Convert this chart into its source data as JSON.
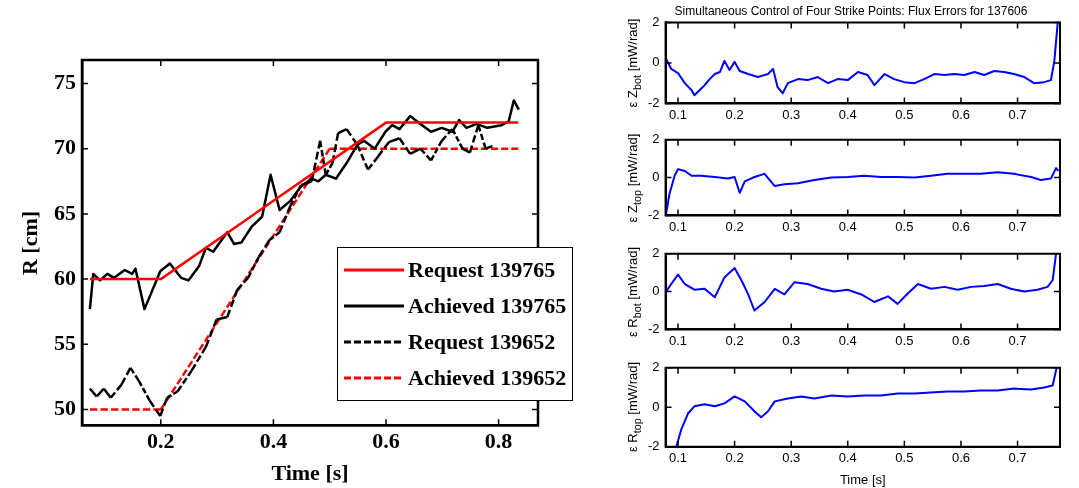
{
  "chart_data": [
    {
      "type": "line",
      "xlabel": "Time [s]",
      "ylabel": "R [cm]",
      "xlim": [
        0.06,
        0.87
      ],
      "ylim": [
        48.8,
        76.8
      ],
      "xticks": [
        0.2,
        0.4,
        0.6,
        0.8
      ],
      "yticks": [
        50,
        55,
        60,
        65,
        70,
        75
      ],
      "grid": false,
      "legend": "bottom right",
      "marker": "none",
      "series": [
        {
          "name": "Request 139765",
          "color": "#ff0000",
          "line_style": "solid",
          "x": [
            0.074,
            0.2,
            0.6,
            0.835
          ],
          "values": [
            60,
            60,
            72,
            72
          ]
        },
        {
          "name": "Achieved 139765",
          "color": "#000000",
          "line_style": "solid",
          "x": [
            0.074,
            0.08,
            0.092,
            0.105,
            0.117,
            0.136,
            0.149,
            0.155,
            0.171,
            0.199,
            0.216,
            0.236,
            0.249,
            0.268,
            0.28,
            0.293,
            0.318,
            0.33,
            0.343,
            0.361,
            0.38,
            0.395,
            0.411,
            0.43,
            0.449,
            0.468,
            0.48,
            0.493,
            0.511,
            0.53,
            0.549,
            0.561,
            0.58,
            0.599,
            0.611,
            0.624,
            0.643,
            0.661,
            0.68,
            0.699,
            0.718,
            0.73,
            0.743,
            0.761,
            0.78,
            0.805,
            0.818,
            0.827,
            0.836
          ],
          "values": [
            57.7,
            60.4,
            59.9,
            60.4,
            60.1,
            60.7,
            60.4,
            60.8,
            57.7,
            60.6,
            61.2,
            60.1,
            59.9,
            61,
            62.4,
            62.1,
            63.6,
            62.7,
            62.8,
            64,
            64.8,
            68,
            65.3,
            66,
            67.1,
            67.7,
            67.5,
            68,
            67.7,
            68.9,
            70.3,
            70.6,
            70,
            71.3,
            71.8,
            71.5,
            72.5,
            71.9,
            71.3,
            71.6,
            71.3,
            72.2,
            71.6,
            71.9,
            71.6,
            71.8,
            72.1,
            73.7,
            73
          ]
        },
        {
          "name": "Request 139652",
          "color": "#000000",
          "line_style": "dashed",
          "x": [
            0.074,
            0.086,
            0.099,
            0.111,
            0.13,
            0.146,
            0.161,
            0.18,
            0.199,
            0.211,
            0.23,
            0.255,
            0.28,
            0.299,
            0.318,
            0.336,
            0.355,
            0.374,
            0.393,
            0.411,
            0.43,
            0.449,
            0.468,
            0.483,
            0.493,
            0.505,
            0.515,
            0.53,
            0.549,
            0.568,
            0.586,
            0.605,
            0.624,
            0.643,
            0.661,
            0.68,
            0.699,
            0.718,
            0.736,
            0.749,
            0.764,
            0.777,
            0.789
          ],
          "values": [
            51.6,
            51,
            51.6,
            50.9,
            51.9,
            53.2,
            52.2,
            50.7,
            49.5,
            50.9,
            51.4,
            53,
            54.8,
            56.9,
            57.1,
            59.2,
            60.1,
            61.7,
            63,
            63.6,
            65.6,
            67.2,
            67.5,
            70.6,
            68,
            68.9,
            71.2,
            71.5,
            70.3,
            68.4,
            69.4,
            70.5,
            70.8,
            69.6,
            70,
            69.1,
            70.6,
            71.5,
            70,
            69.7,
            71.8,
            70,
            70.2
          ]
        },
        {
          "name": "Achieved 139652",
          "color": "#ff0000",
          "line_style": "dashed",
          "x": [
            0.074,
            0.2,
            0.5,
            0.835
          ],
          "values": [
            50,
            50,
            70,
            70
          ]
        }
      ]
    },
    {
      "type": "line",
      "title": "Simultaneous Control of Four Strike Points: Flux Errors for 137606",
      "ylabel": "ε Z$_{bot}$ [mW/rad]",
      "xlim": [
        0.078,
        0.775
      ],
      "ylim": [
        -2,
        2
      ],
      "xticks": [
        0.1,
        0.2,
        0.3,
        0.4,
        0.5,
        0.6,
        0.7
      ],
      "yticks": [
        -2,
        0,
        2
      ],
      "grid": false,
      "marker": "none",
      "series": [
        {
          "color": "#0000ff",
          "x": [
            0.079,
            0.088,
            0.1,
            0.112,
            0.124,
            0.129,
            0.138,
            0.147,
            0.156,
            0.165,
            0.174,
            0.182,
            0.191,
            0.2,
            0.209,
            0.224,
            0.241,
            0.259,
            0.268,
            0.276,
            0.285,
            0.294,
            0.312,
            0.329,
            0.347,
            0.365,
            0.382,
            0.4,
            0.418,
            0.435,
            0.447,
            0.465,
            0.482,
            0.5,
            0.518,
            0.535,
            0.553,
            0.571,
            0.588,
            0.606,
            0.624,
            0.641,
            0.659,
            0.676,
            0.694,
            0.712,
            0.729,
            0.747,
            0.759,
            0.765,
            0.771
          ],
          "values": [
            0.2,
            -0.3,
            -0.5,
            -1.0,
            -1.35,
            -1.6,
            -1.35,
            -1.1,
            -0.8,
            -0.55,
            -0.45,
            0.1,
            -0.35,
            0.05,
            -0.4,
            -0.55,
            -0.7,
            -0.55,
            -0.3,
            -1.2,
            -1.5,
            -1.0,
            -0.8,
            -0.85,
            -0.7,
            -1.0,
            -0.8,
            -0.85,
            -0.45,
            -0.6,
            -1.1,
            -0.55,
            -0.8,
            -0.95,
            -1.0,
            -0.8,
            -0.55,
            -0.6,
            -0.55,
            -0.6,
            -0.45,
            -0.6,
            -0.4,
            -0.45,
            -0.55,
            -0.7,
            -1.0,
            -0.95,
            -0.85,
            0.1,
            2
          ]
        }
      ]
    },
    {
      "type": "line",
      "ylabel": "ε Z$_{top}$ [mW/rad]",
      "xlim": [
        0.078,
        0.775
      ],
      "ylim": [
        -2,
        2
      ],
      "xticks": [
        0.1,
        0.2,
        0.3,
        0.4,
        0.5,
        0.6,
        0.7
      ],
      "yticks": [
        -2,
        0,
        2
      ],
      "grid": false,
      "marker": "none",
      "series": [
        {
          "color": "#0000ff",
          "x": [
            0.079,
            0.085,
            0.094,
            0.1,
            0.112,
            0.124,
            0.141,
            0.165,
            0.188,
            0.2,
            0.209,
            0.218,
            0.235,
            0.253,
            0.271,
            0.288,
            0.312,
            0.341,
            0.371,
            0.4,
            0.429,
            0.459,
            0.488,
            0.518,
            0.547,
            0.576,
            0.606,
            0.635,
            0.665,
            0.694,
            0.724,
            0.741,
            0.759,
            0.768,
            0.772
          ],
          "values": [
            -1.9,
            -0.85,
            0.1,
            0.45,
            0.35,
            0.1,
            0.1,
            0.03,
            -0.05,
            0.03,
            -0.8,
            -0.2,
            0.03,
            0.2,
            -0.45,
            -0.35,
            -0.3,
            -0.13,
            0,
            0.03,
            0.1,
            0.03,
            0.03,
            0,
            0.1,
            0.2,
            0.2,
            0.2,
            0.28,
            0.2,
            0.03,
            -0.13,
            -0.05,
            0.5,
            0.35
          ]
        }
      ]
    },
    {
      "type": "line",
      "ylabel": "ε R$_{bot}$ [mW/rad]",
      "xlim": [
        0.078,
        0.775
      ],
      "ylim": [
        -2,
        2
      ],
      "xticks": [
        0.1,
        0.2,
        0.3,
        0.4,
        0.5,
        0.6,
        0.7
      ],
      "yticks": [
        -2,
        0,
        2
      ],
      "grid": false,
      "marker": "none",
      "series": [
        {
          "color": "#0000ff",
          "x": [
            0.079,
            0.088,
            0.1,
            0.112,
            0.129,
            0.147,
            0.165,
            0.182,
            0.2,
            0.212,
            0.224,
            0.235,
            0.253,
            0.271,
            0.288,
            0.306,
            0.329,
            0.353,
            0.376,
            0.4,
            0.424,
            0.447,
            0.471,
            0.488,
            0.506,
            0.524,
            0.547,
            0.571,
            0.594,
            0.618,
            0.641,
            0.665,
            0.688,
            0.712,
            0.735,
            0.753,
            0.762,
            0.768
          ],
          "values": [
            0,
            0.4,
            0.9,
            0.4,
            0.1,
            0.15,
            -0.3,
            0.75,
            1.25,
            0.6,
            -0.15,
            -1.0,
            -0.55,
            0.15,
            -0.15,
            0.5,
            0.4,
            0.15,
            0,
            0.1,
            -0.15,
            -0.55,
            -0.25,
            -0.65,
            -0.1,
            0.4,
            0.15,
            0.25,
            0.1,
            0.25,
            0.3,
            0.4,
            0.15,
            0,
            0.1,
            0.25,
            0.6,
            2
          ]
        }
      ]
    },
    {
      "type": "line",
      "xlabel": "Time [s]",
      "ylabel": "ε R$_{top}$ [mW/rad]",
      "xlim": [
        0.078,
        0.775
      ],
      "ylim": [
        -2,
        2
      ],
      "xticks": [
        0.1,
        0.2,
        0.3,
        0.4,
        0.5,
        0.6,
        0.7
      ],
      "yticks": [
        -2,
        0,
        2
      ],
      "grid": false,
      "marker": "none",
      "series": [
        {
          "color": "#0000ff",
          "x": [
            0.097,
            0.106,
            0.118,
            0.129,
            0.147,
            0.165,
            0.182,
            0.2,
            0.218,
            0.235,
            0.247,
            0.259,
            0.271,
            0.294,
            0.318,
            0.341,
            0.371,
            0.4,
            0.429,
            0.459,
            0.488,
            0.518,
            0.547,
            0.576,
            0.606,
            0.635,
            0.665,
            0.694,
            0.724,
            0.747,
            0.762,
            0.769
          ],
          "values": [
            -2,
            -1.1,
            -0.3,
            0.05,
            0.15,
            0.05,
            0.2,
            0.55,
            0.3,
            -0.2,
            -0.5,
            -0.2,
            0.3,
            0.45,
            0.55,
            0.45,
            0.6,
            0.55,
            0.6,
            0.6,
            0.7,
            0.7,
            0.75,
            0.8,
            0.8,
            0.85,
            0.85,
            0.95,
            0.9,
            1.0,
            1.1,
            2
          ]
        }
      ]
    }
  ]
}
